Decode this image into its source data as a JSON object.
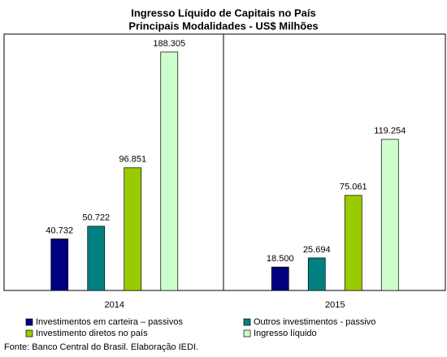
{
  "chart_data": {
    "type": "bar",
    "title": [
      "Ingresso Líquido de Capitais no País",
      "Principais Modalidades  - US$ Milhões"
    ],
    "categories": [
      "2014",
      "2015"
    ],
    "series": [
      {
        "name": "Investimentos em carteira – passivos",
        "color": "#000080",
        "values": [
          40732,
          18500
        ],
        "value_labels": [
          "40.732",
          "18.500"
        ]
      },
      {
        "name": "Outros investimentos - passivo",
        "color": "#008080",
        "values": [
          50722,
          25694
        ],
        "value_labels": [
          "50.722",
          "25.694"
        ]
      },
      {
        "name": "Investimento diretos no país",
        "color": "#99cc00",
        "values": [
          96851,
          75061
        ],
        "value_labels": [
          "96.851",
          "75.061"
        ]
      },
      {
        "name": "Ingresso líquido",
        "color": "#ccffcc",
        "values": [
          188305,
          119254
        ],
        "value_labels": [
          "188.305",
          "119.254"
        ]
      }
    ],
    "source": "Fonte: Banco Central do Brasil. Elaboração IEDI."
  }
}
